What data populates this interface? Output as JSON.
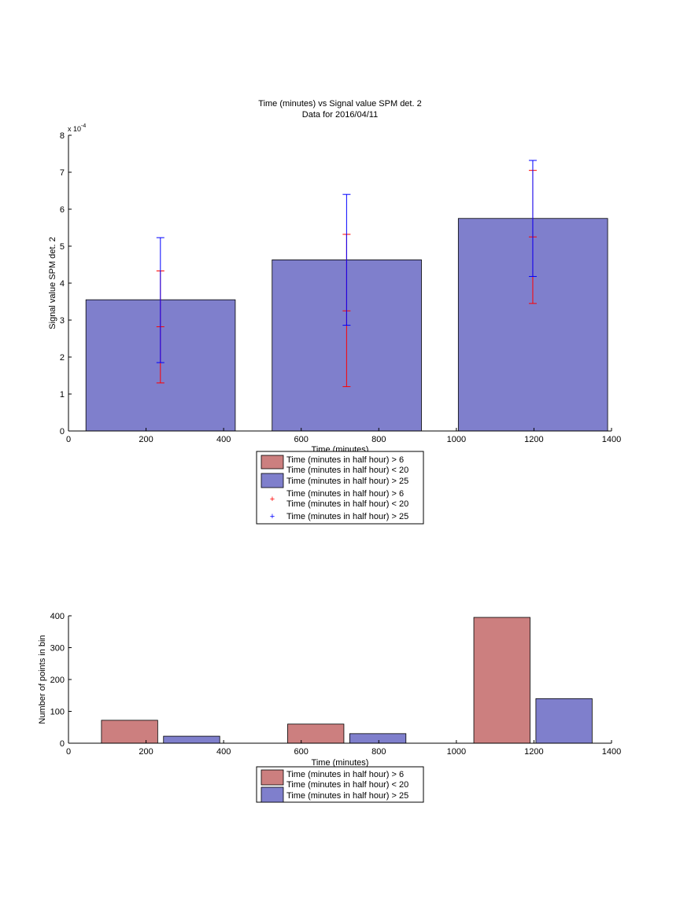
{
  "figure": {
    "title_line1": "Time (minutes) vs Signal value SPM det. 2",
    "title_line2": "Data for 2016/04/11"
  },
  "colors": {
    "red_face": "#cc7f7f",
    "blue_face": "#7f7fcc",
    "red_err": "#ff0000",
    "blue_err": "#0000ff"
  },
  "legend_items": [
    {
      "line1": "Time (minutes in half hour) > 6",
      "line2": "Time (minutes in half hour) < 20"
    },
    {
      "line1": "Time (minutes in half hour) > 25",
      "line2": ""
    }
  ],
  "chart_data": [
    {
      "type": "bar",
      "title": "Time (minutes) vs Signal value SPM det. 2",
      "subtitle": "Data for 2016/04/11",
      "xlabel": "Time (minutes)",
      "ylabel": "Signal value SPM det. 2",
      "y_multiplier": "x 10",
      "y_exponent": "-4",
      "xlim": [
        0,
        1400
      ],
      "ylim": [
        0,
        8
      ],
      "xticks": [
        "0",
        "200",
        "400",
        "600",
        "800",
        "1000",
        "1200",
        "1400"
      ],
      "yticks": [
        "0",
        "1",
        "2",
        "3",
        "4",
        "5",
        "6",
        "7",
        "8"
      ],
      "grid": false,
      "legend": "below",
      "bars": [
        {
          "x0": 45,
          "x1": 430,
          "value": 3.55
        },
        {
          "x0": 525,
          "x1": 910,
          "value": 4.63
        },
        {
          "x0": 1005,
          "x1": 1390,
          "value": 5.75
        }
      ],
      "error_bars": [
        {
          "series": "red",
          "x": 237,
          "low": 1.3,
          "high": 4.33,
          "inner_low": 2.82
        },
        {
          "series": "blue",
          "x": 237,
          "low": 1.85,
          "high": 5.23
        },
        {
          "series": "red",
          "x": 717,
          "low": 1.2,
          "high": 5.32,
          "inner_low": 3.25
        },
        {
          "series": "blue",
          "x": 717,
          "low": 2.86,
          "high": 6.4
        },
        {
          "series": "red",
          "x": 1197,
          "low": 3.45,
          "high": 7.05,
          "inner_low": 5.25
        },
        {
          "series": "blue",
          "x": 1197,
          "low": 4.18,
          "high": 7.32
        }
      ]
    },
    {
      "type": "bar",
      "xlabel": "Time (minutes)",
      "ylabel": "Number of points in bin",
      "xlim": [
        0,
        1400
      ],
      "ylim": [
        0,
        400
      ],
      "xticks": [
        "0",
        "200",
        "400",
        "600",
        "800",
        "1000",
        "1200",
        "1400"
      ],
      "yticks": [
        "0",
        "100",
        "200",
        "300",
        "400"
      ],
      "grid": false,
      "legend": "below",
      "series": [
        {
          "name": "red",
          "bars": [
            {
              "x0": 85,
              "x1": 230,
              "value": 72
            },
            {
              "x0": 565,
              "x1": 710,
              "value": 60
            },
            {
              "x0": 1045,
              "x1": 1190,
              "value": 395
            }
          ]
        },
        {
          "name": "blue",
          "bars": [
            {
              "x0": 245,
              "x1": 390,
              "value": 22
            },
            {
              "x0": 725,
              "x1": 870,
              "value": 30
            },
            {
              "x0": 1205,
              "x1": 1350,
              "value": 140
            }
          ]
        }
      ]
    }
  ]
}
